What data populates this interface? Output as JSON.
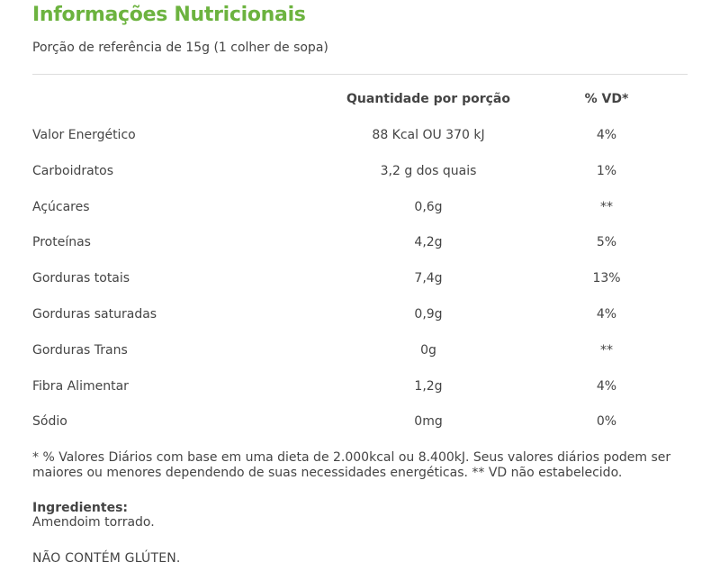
{
  "title": "Informações Nutricionais",
  "portion": "Porção de referência de 15g (1 colher de sopa)",
  "table": {
    "headers": {
      "nutrient": "",
      "quantity": "Quantidade por porção",
      "vd": "% VD*"
    },
    "rows": [
      {
        "name": "Valor Energético",
        "quantity": "88 Kcal OU 370 kJ",
        "vd": "4%"
      },
      {
        "name": "Carboidratos",
        "quantity": "3,2 g dos quais",
        "vd": "1%"
      },
      {
        "name": "Açúcares",
        "quantity": "0,6g",
        "vd": "**"
      },
      {
        "name": "Proteínas",
        "quantity": "4,2g",
        "vd": "5%"
      },
      {
        "name": "Gorduras totais",
        "quantity": "7,4g",
        "vd": "13%"
      },
      {
        "name": "Gorduras saturadas",
        "quantity": "0,9g",
        "vd": "4%"
      },
      {
        "name": "Gorduras Trans",
        "quantity": "0g",
        "vd": "**"
      },
      {
        "name": "Fibra Alimentar",
        "quantity": "1,2g",
        "vd": "4%"
      },
      {
        "name": "Sódio",
        "quantity": "0mg",
        "vd": "0%"
      }
    ]
  },
  "footnote": "* % Valores Diários com base em uma dieta de 2.000kcal ou 8.400kJ. Seus valores diários podem ser maiores ou menores dependendo de suas necessidades energéticas. ** VD não estabelecido.",
  "ingredients": {
    "label": "Ingredientes:",
    "text": "Amendoim torrado."
  },
  "gluten_notice": "NÃO CONTÉM GLÚTEN.",
  "colors": {
    "title": "#6cb33f",
    "text": "#444444",
    "divider": "#dedede"
  }
}
